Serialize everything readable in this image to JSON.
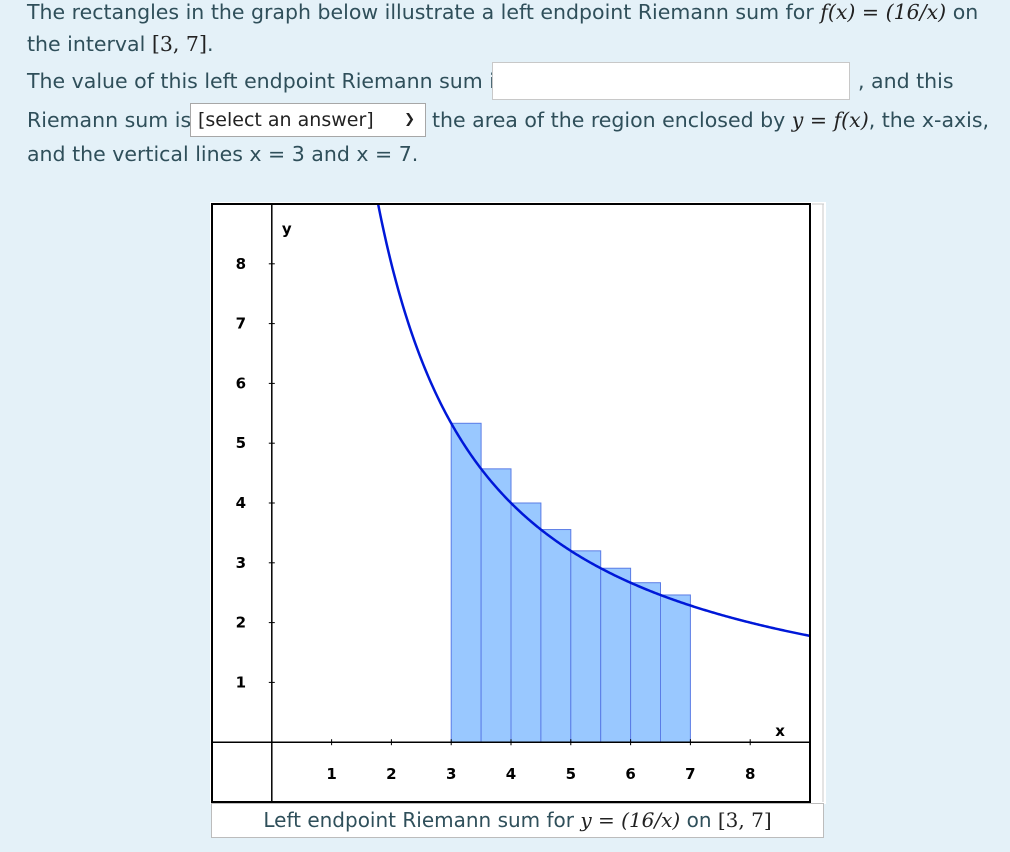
{
  "question": {
    "line1_text": "The rectangles in the graph below illustrate a left endpoint Riemann sum for ",
    "line1_math": "f(x) = (16/x)",
    "line1_suffix": " on",
    "line2_text": "the interval ",
    "line2_math": "[3, 7]",
    "line2_suffix": ".",
    "line3_text": "The value of this left endpoint Riemann sum is",
    "line3_suffix": ", and this",
    "line4_prefix": "Riemann sum is",
    "line4_text": "the area of the region enclosed by ",
    "line4_math": "y = f(x)",
    "line4_suffix": ", the x-axis,",
    "line5_text": "and the vertical lines x = 3 and x = 7."
  },
  "answer_input": {
    "value": "",
    "placeholder": ""
  },
  "select": {
    "selected": "[select an answer]"
  },
  "caption": {
    "prefix": "Left endpoint Riemann sum for ",
    "math": "y = (16/x)",
    "mid": " on ",
    "interval": "[3, 7]"
  },
  "chart_data": {
    "type": "area",
    "function": "16/x",
    "x_axis_label": "x",
    "y_axis_label": "y",
    "xlim": [
      -1,
      9
    ],
    "ylim": [
      -1,
      9
    ],
    "x_ticks": [
      1,
      2,
      3,
      4,
      5,
      6,
      7,
      8
    ],
    "y_ticks": [
      1,
      2,
      3,
      4,
      5,
      6,
      7,
      8
    ],
    "curve_color": "#0018d8",
    "bar_fill": "#99c8ff",
    "bar_stroke": "#5a7ce6",
    "bars": [
      {
        "x0": 3.0,
        "x1": 3.5,
        "height": 5.333
      },
      {
        "x0": 3.5,
        "x1": 4.0,
        "height": 4.571
      },
      {
        "x0": 4.0,
        "x1": 4.5,
        "height": 4.0
      },
      {
        "x0": 4.5,
        "x1": 5.0,
        "height": 3.556
      },
      {
        "x0": 5.0,
        "x1": 5.5,
        "height": 3.2
      },
      {
        "x0": 5.5,
        "x1": 6.0,
        "height": 2.909
      },
      {
        "x0": 6.0,
        "x1": 6.5,
        "height": 2.667
      },
      {
        "x0": 6.5,
        "x1": 7.0,
        "height": 2.462
      }
    ]
  }
}
